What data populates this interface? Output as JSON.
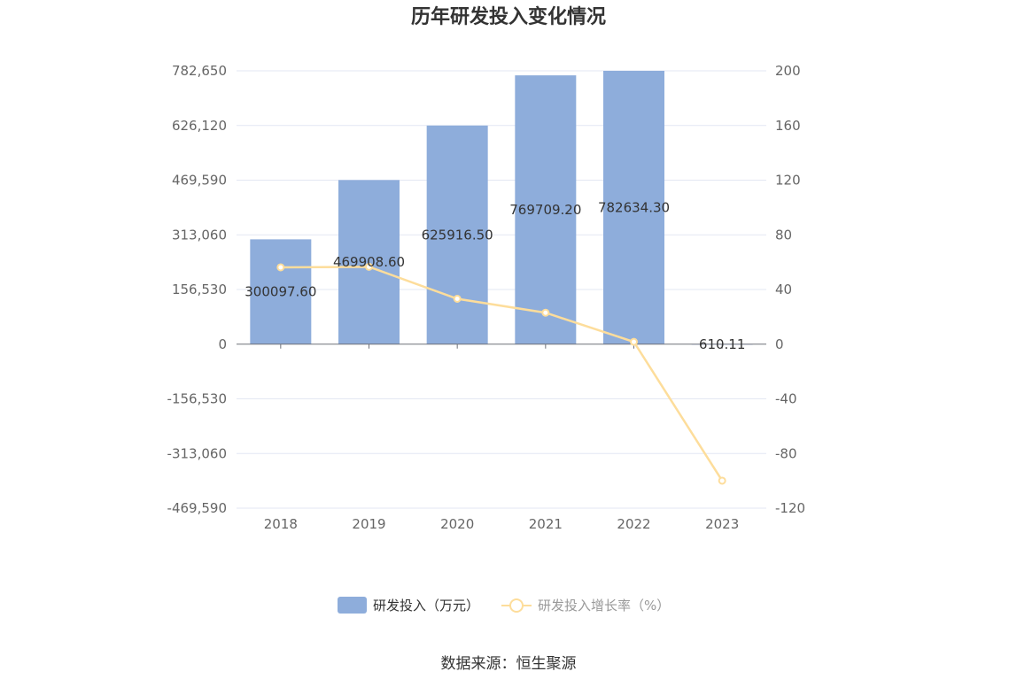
{
  "chart_data": {
    "type": "bar",
    "title": "历年研发投入变化情况",
    "categories": [
      "2018",
      "2019",
      "2020",
      "2021",
      "2022",
      "2023"
    ],
    "series": [
      {
        "name": "研发投入（万元）",
        "type": "bar",
        "axis": "left",
        "color": "#8eaddb",
        "values": [
          300097.6,
          469908.6,
          625916.5,
          769709.2,
          782634.3,
          610.11
        ],
        "labels": [
          "300097.60",
          "469908.60",
          "625916.50",
          "769709.20",
          "782634.30",
          "610.11"
        ]
      },
      {
        "name": "研发投入增长率（%）",
        "type": "line",
        "axis": "right",
        "color": "#fddd9b",
        "values": [
          56.2,
          56.6,
          33.2,
          23.0,
          1.7,
          -99.9
        ]
      }
    ],
    "left_axis": {
      "min": -469590,
      "max": 782650,
      "ticks": [
        782650,
        626120,
        469590,
        313060,
        156530,
        0,
        -156530,
        -313060,
        -469590
      ],
      "tick_labels": [
        "782,650",
        "626,120",
        "469,590",
        "313,060",
        "156,530",
        "0",
        "-156,530",
        "-313,060",
        "-469,590"
      ]
    },
    "right_axis": {
      "min": -120,
      "max": 200,
      "ticks": [
        200,
        160,
        120,
        80,
        40,
        0,
        -40,
        -80,
        -120
      ],
      "tick_labels": [
        "200",
        "160",
        "120",
        "80",
        "40",
        "0",
        "-40",
        "-80",
        "-120"
      ]
    },
    "grid": true,
    "legend_position": "bottom"
  },
  "source": "数据来源：恒生聚源"
}
